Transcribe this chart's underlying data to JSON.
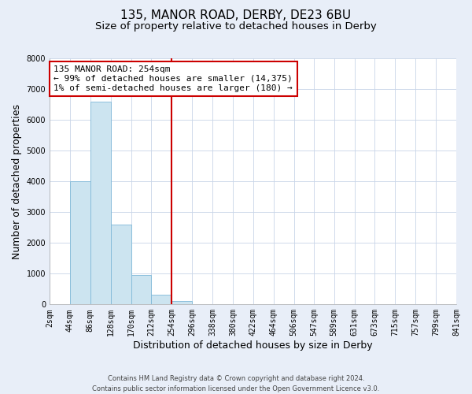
{
  "title": "135, MANOR ROAD, DERBY, DE23 6BU",
  "subtitle": "Size of property relative to detached houses in Derby",
  "xlabel": "Distribution of detached houses by size in Derby",
  "ylabel": "Number of detached properties",
  "footer_line1": "Contains HM Land Registry data © Crown copyright and database right 2024.",
  "footer_line2": "Contains public sector information licensed under the Open Government Licence v3.0.",
  "bar_edges": [
    2,
    44,
    86,
    128,
    170,
    212,
    254,
    296,
    338,
    380,
    422,
    464,
    506,
    547,
    589,
    631,
    673,
    715,
    757,
    799,
    841
  ],
  "bar_heights": [
    0,
    4000,
    6600,
    2600,
    950,
    320,
    120,
    0,
    0,
    0,
    0,
    0,
    0,
    0,
    0,
    0,
    0,
    0,
    0,
    0
  ],
  "bar_color": "#cce4f0",
  "bar_edgecolor": "#7fb8d8",
  "property_size": 254,
  "vline_color": "#cc0000",
  "annotation_text_line1": "135 MANOR ROAD: 254sqm",
  "annotation_text_line2": "← 99% of detached houses are smaller (14,375)",
  "annotation_text_line3": "1% of semi-detached houses are larger (180) →",
  "annotation_box_edgecolor": "#cc0000",
  "ylim": [
    0,
    8000
  ],
  "xlim": [
    2,
    841
  ],
  "tick_labels": [
    "2sqm",
    "44sqm",
    "86sqm",
    "128sqm",
    "170sqm",
    "212sqm",
    "254sqm",
    "296sqm",
    "338sqm",
    "380sqm",
    "422sqm",
    "464sqm",
    "506sqm",
    "547sqm",
    "589sqm",
    "631sqm",
    "673sqm",
    "715sqm",
    "757sqm",
    "799sqm",
    "841sqm"
  ],
  "tick_positions": [
    2,
    44,
    86,
    128,
    170,
    212,
    254,
    296,
    338,
    380,
    422,
    464,
    506,
    547,
    589,
    631,
    673,
    715,
    757,
    799,
    841
  ],
  "yticks": [
    0,
    1000,
    2000,
    3000,
    4000,
    5000,
    6000,
    7000,
    8000
  ],
  "background_color": "#e8eef8",
  "plot_background": "#ffffff",
  "grid_color": "#c8d4e8",
  "title_fontsize": 11,
  "subtitle_fontsize": 9.5,
  "axis_label_fontsize": 9,
  "tick_fontsize": 7,
  "annotation_fontsize": 8,
  "footer_fontsize": 6
}
